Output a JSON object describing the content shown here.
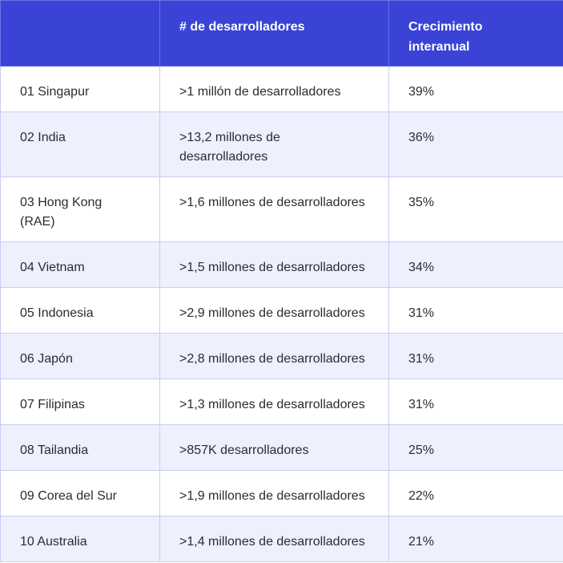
{
  "table": {
    "headers": [
      "",
      "# de desarrolladores",
      "Crecimiento interanual"
    ],
    "rows": [
      {
        "rank_country": "01 Singapur",
        "developers": ">1 millón de desarrolladores",
        "growth": "39%"
      },
      {
        "rank_country": "02 India",
        "developers": ">13,2 millones de desarrolladores",
        "growth": "36%"
      },
      {
        "rank_country": "03 Hong Kong (RAE)",
        "developers": ">1,6 millones de desarrolladores",
        "growth": "35%"
      },
      {
        "rank_country": "04 Vietnam",
        "developers": ">1,5 millones de desarrolladores",
        "growth": "34%"
      },
      {
        "rank_country": "05 Indonesia",
        "developers": ">2,9 millones de desarrolladores",
        "growth": "31%"
      },
      {
        "rank_country": "06 Japón",
        "developers": ">2,8 millones de desarrolladores",
        "growth": "31%"
      },
      {
        "rank_country": "07 Filipinas",
        "developers": ">1,3 millones de desarrolladores",
        "growth": "31%"
      },
      {
        "rank_country": "08 Tailandia",
        "developers": ">857K desarrolladores",
        "growth": "25%"
      },
      {
        "rank_country": "09 Corea del Sur",
        "developers": ">1,9 millones de desarrolladores",
        "growth": "22%"
      },
      {
        "rank_country": "10 Australia",
        "developers": ">1,4 millones de desarrolladores",
        "growth": "21%"
      }
    ]
  },
  "colors": {
    "header_bg": "#3a43d6",
    "header_text": "#ffffff",
    "stripe_bg": "#eef0fd",
    "border": "#c9cdf2"
  }
}
